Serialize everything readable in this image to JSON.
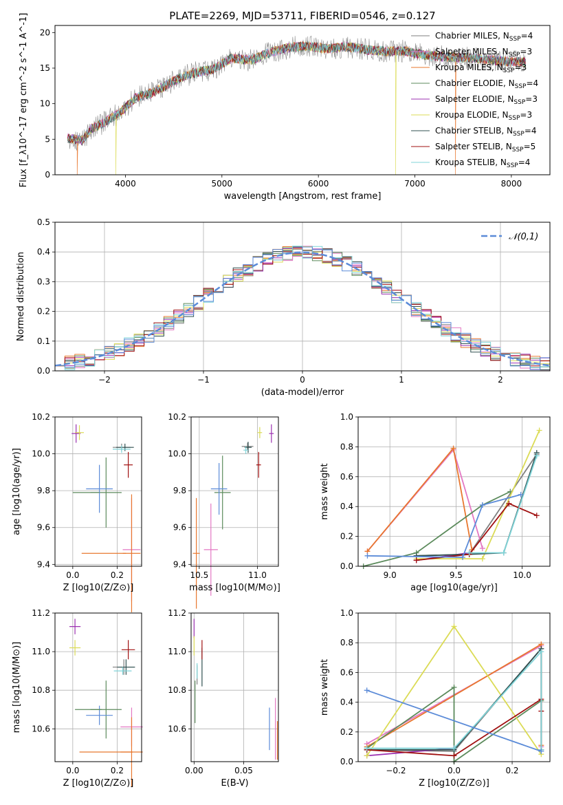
{
  "figure": {
    "title": "PLATE=2269, MJD=53711, FIBERID=0546, z=0.127"
  },
  "chart_data": [
    {
      "id": "spectrum",
      "type": "line",
      "xlabel": "wavelength [Angstrom, rest frame]",
      "ylabel": "Flux [f_λ10^-17 erg cm^-2 s^-1 A^-1]",
      "xlim": [
        3270,
        8400
      ],
      "ylim": [
        0,
        21
      ],
      "xticks": [
        4000,
        5000,
        6000,
        7000,
        8000
      ],
      "yticks": [
        0,
        5,
        10,
        15,
        20
      ],
      "grid": false,
      "legend_position": "right",
      "observed_color": "#7f7f7f",
      "anchors": [
        [
          3400,
          5.2
        ],
        [
          3550,
          4.8
        ],
        [
          3650,
          6.5
        ],
        [
          3800,
          7.5
        ],
        [
          3950,
          8.8
        ],
        [
          4100,
          10.8
        ],
        [
          4300,
          11.6
        ],
        [
          4500,
          13.2
        ],
        [
          4700,
          14.3
        ],
        [
          4900,
          14.8
        ],
        [
          5100,
          16.4
        ],
        [
          5300,
          16.1
        ],
        [
          5500,
          17.2
        ],
        [
          5700,
          17.9
        ],
        [
          5900,
          18.1
        ],
        [
          6100,
          17.7
        ],
        [
          6300,
          18.0
        ],
        [
          6500,
          17.6
        ],
        [
          6700,
          17.3
        ],
        [
          6900,
          17.4
        ],
        [
          7100,
          16.8
        ],
        [
          7300,
          16.6
        ],
        [
          7500,
          16.5
        ],
        [
          7700,
          16.3
        ],
        [
          7900,
          16.0
        ],
        [
          8150,
          15.8
        ]
      ],
      "dropouts": [
        {
          "series": "Kroupa MILES",
          "x": 3500
        },
        {
          "series": "Kroupa MILES",
          "x": 7420
        },
        {
          "series": "Kroupa ELODIE",
          "x": 3900
        },
        {
          "series": "Kroupa ELODIE",
          "x": 6800
        }
      ],
      "series": [
        {
          "name": "Chabrier MILES",
          "nssp": "4",
          "color": "#7f7f7f"
        },
        {
          "name": "Salpeter MILES",
          "nssp": "3",
          "color": "#e377c2"
        },
        {
          "name": "Kroupa MILES",
          "nssp": "3",
          "color": "#e8772e"
        },
        {
          "name": "Chabrier ELODIE",
          "nssp": "4",
          "color": "#5b8a5b"
        },
        {
          "name": "Salpeter ELODIE",
          "nssp": "3",
          "color": "#9b30b0"
        },
        {
          "name": "Kroupa ELODIE",
          "nssp": "3",
          "color": "#dbdb55"
        },
        {
          "name": "Chabrier STELIB",
          "nssp": "4",
          "color": "#2f4f4f"
        },
        {
          "name": "Salpeter STELIB",
          "nssp": "5",
          "color": "#a01010"
        },
        {
          "name": "Kroupa STELIB",
          "nssp": "4",
          "color": "#7fd4d8"
        }
      ]
    },
    {
      "id": "residuals",
      "type": "histogram",
      "xlabel": "(data-model)/error",
      "ylabel": "Normed distribution",
      "xlim": [
        -2.5,
        2.5
      ],
      "ylim": [
        0,
        0.5
      ],
      "xticks": [
        -2,
        -1,
        0,
        1,
        2
      ],
      "yticks": [
        0.0,
        0.1,
        0.2,
        0.3,
        0.4,
        0.5
      ],
      "grid": true,
      "bin_width": 0.1,
      "legend": {
        "label": "𝒩(0,1)",
        "position": "top-right",
        "color": "#5b8bd8"
      }
    },
    {
      "id": "age-metal",
      "type": "scatter",
      "xlabel": "Z [log10(Z/Z⊙)]",
      "ylabel": "age  [log10(age/yr)]",
      "xlim": [
        -0.08,
        0.31
      ],
      "ylim": [
        9.39,
        10.2
      ],
      "xticks": [
        0.0,
        0.2
      ],
      "yticks": [
        9.4,
        9.6,
        9.8,
        10.0,
        10.2
      ],
      "grid": true,
      "points": [
        {
          "series": "Chabrier MILES",
          "x": 0.22,
          "y": 10.035,
          "xerr": 0.04,
          "yerr": 0.02
        },
        {
          "series": "Salpeter MILES",
          "x": 0.265,
          "y": 9.48,
          "xerr": 0.04,
          "yerr": 0.28
        },
        {
          "series": "Kroupa MILES",
          "x": 0.265,
          "y": 9.46,
          "xerr": 0.04,
          "yerr": 0.32
        },
        {
          "series": "Chabrier ELODIE",
          "x": 0.15,
          "y": 9.79,
          "xerr": 0.07,
          "yerr": 0.19
        },
        {
          "series": "Salpeter ELODIE",
          "x": 0.015,
          "y": 10.11,
          "xerr": 0.02,
          "yerr": 0.05
        },
        {
          "series": "Kroupa ELODIE",
          "x": 0.03,
          "y": 10.115,
          "xerr": 0.02,
          "yerr": 0.04
        },
        {
          "series": "Chabrier STELIB",
          "x": 0.235,
          "y": 10.035,
          "xerr": 0.04,
          "yerr": 0.02
        },
        {
          "series": "Salpeter STELIB",
          "x": 0.25,
          "y": 9.94,
          "xerr": 0.02,
          "yerr": 0.07
        },
        {
          "series": "Kroupa STELIB",
          "x": 0.22,
          "y": 10.025,
          "xerr": 0.04,
          "yerr": 0.02
        },
        {
          "series": "extra-blue",
          "x": 0.12,
          "y": 9.81,
          "xerr": 0.06,
          "yerr": 0.13
        },
        {
          "series": "extra-orange",
          "x": 0.14,
          "y": 9.46,
          "xerr": 0.1,
          "yerr": 0.0
        },
        {
          "series": "extra-olive",
          "x": 0.06,
          "y": 9.79,
          "xerr": 0.06,
          "yerr": 0.0
        }
      ]
    },
    {
      "id": "age-mass",
      "type": "scatter",
      "xlabel": "mass [log10(M/M⊙)]",
      "ylabel": "",
      "xlim": [
        10.43,
        11.18
      ],
      "ylim": [
        9.39,
        10.2
      ],
      "xticks": [
        10.5,
        11.0
      ],
      "yticks": [
        9.4,
        9.6,
        9.8,
        10.0,
        10.2
      ],
      "grid": true,
      "points": [
        {
          "series": "Chabrier MILES",
          "x": 10.915,
          "y": 10.04,
          "xerr": 0.05,
          "yerr": 0.02
        },
        {
          "series": "Salpeter MILES",
          "x": 10.6,
          "y": 9.48,
          "xerr": 0.06,
          "yerr": 0.25
        },
        {
          "series": "Kroupa MILES",
          "x": 10.475,
          "y": 9.46,
          "xerr": 0.03,
          "yerr": 0.3
        },
        {
          "series": "Chabrier ELODIE",
          "x": 10.7,
          "y": 9.79,
          "xerr": 0.07,
          "yerr": 0.2
        },
        {
          "series": "Salpeter ELODIE",
          "x": 11.12,
          "y": 10.11,
          "xerr": 0.02,
          "yerr": 0.05
        },
        {
          "series": "Kroupa ELODIE",
          "x": 11.02,
          "y": 10.115,
          "xerr": 0.02,
          "yerr": 0.03
        },
        {
          "series": "Chabrier STELIB",
          "x": 10.92,
          "y": 10.035,
          "xerr": 0.03,
          "yerr": 0.03
        },
        {
          "series": "Salpeter STELIB",
          "x": 11.01,
          "y": 9.94,
          "xerr": 0.02,
          "yerr": 0.07
        },
        {
          "series": "Kroupa STELIB",
          "x": 10.9,
          "y": 10.02,
          "xerr": 0.02,
          "yerr": 0.02
        },
        {
          "series": "extra-blue",
          "x": 10.67,
          "y": 9.81,
          "xerr": 0.07,
          "yerr": 0.14
        }
      ]
    },
    {
      "id": "weight-age",
      "type": "line",
      "xlabel": "age  [log10(age/yr)]",
      "ylabel": "mass weight",
      "xlim": [
        8.76,
        10.21
      ],
      "ylim": [
        0,
        1.0
      ],
      "xticks": [
        9.0,
        9.5,
        10.0
      ],
      "yticks": [
        0.0,
        0.2,
        0.4,
        0.6,
        0.8,
        1.0
      ],
      "grid": true,
      "series": [
        {
          "name": "Chabrier MILES",
          "color": "#7f7f7f",
          "x": [
            9.2,
            9.6,
            10.11
          ],
          "y": [
            0.07,
            0.08,
            0.75
          ]
        },
        {
          "name": "Salpeter MILES",
          "color": "#e377c2",
          "x": [
            8.83,
            9.48,
            9.7
          ],
          "y": [
            0.1,
            0.78,
            0.12
          ]
        },
        {
          "name": "Kroupa MILES",
          "color": "#e8772e",
          "x": [
            8.83,
            9.48,
            9.62
          ],
          "y": [
            0.1,
            0.79,
            0.11
          ]
        },
        {
          "name": "Chabrier ELODIE",
          "color": "#5b8a5b",
          "x": [
            8.8,
            9.2,
            9.7,
            9.91
          ],
          "y": [
            0.0,
            0.09,
            0.41,
            0.5
          ]
        },
        {
          "name": "Salpeter ELODIE",
          "color": "#9b30b0",
          "x": [
            9.2,
            9.6
          ],
          "y": [
            0.04,
            0.09
          ]
        },
        {
          "name": "Kroupa ELODIE",
          "color": "#dbdb55",
          "x": [
            9.2,
            9.7,
            10.13
          ],
          "y": [
            0.05,
            0.05,
            0.91
          ]
        },
        {
          "name": "Chabrier STELIB",
          "color": "#2f4f4f",
          "x": [
            9.2,
            9.6,
            9.86,
            10.11
          ],
          "y": [
            0.07,
            0.08,
            0.09,
            0.76
          ]
        },
        {
          "name": "Salpeter STELIB",
          "color": "#a01010",
          "x": [
            9.2,
            9.6,
            9.9,
            10.11
          ],
          "y": [
            0.04,
            0.08,
            0.42,
            0.34
          ]
        },
        {
          "name": "Kroupa STELIB",
          "color": "#7fd4d8",
          "x": [
            9.6,
            9.86,
            10.11
          ],
          "y": [
            0.09,
            0.09,
            0.74
          ]
        },
        {
          "name": "extra-blue",
          "color": "#5b8bd8",
          "x": [
            8.83,
            9.55,
            9.7,
            9.99
          ],
          "y": [
            0.07,
            0.06,
            0.41,
            0.48
          ]
        }
      ]
    },
    {
      "id": "mass-metal",
      "type": "scatter",
      "xlabel": "Z [log10(Z/Z⊙)]",
      "ylabel": "mass [log10(M/M⊙)]",
      "xlim": [
        -0.08,
        0.31
      ],
      "ylim": [
        10.43,
        11.2
      ],
      "xticks": [
        0.0,
        0.2
      ],
      "yticks": [
        10.6,
        10.8,
        11.0,
        11.2
      ],
      "grid": true,
      "points": [
        {
          "series": "Chabrier MILES",
          "x": 0.23,
          "y": 10.92,
          "xerr": 0.05,
          "yerr": 0.04
        },
        {
          "series": "Salpeter MILES",
          "x": 0.265,
          "y": 10.61,
          "xerr": 0.05,
          "yerr": 0.1
        },
        {
          "series": "Kroupa MILES",
          "x": 0.265,
          "y": 10.48,
          "xerr": 0.05,
          "yerr": 0.18
        },
        {
          "series": "Chabrier ELODIE",
          "x": 0.15,
          "y": 10.7,
          "xerr": 0.07,
          "yerr": 0.15
        },
        {
          "series": "Salpeter ELODIE",
          "x": 0.01,
          "y": 11.13,
          "xerr": 0.025,
          "yerr": 0.04
        },
        {
          "series": "Kroupa ELODIE",
          "x": 0.01,
          "y": 11.02,
          "xerr": 0.025,
          "yerr": 0.04
        },
        {
          "series": "Chabrier STELIB",
          "x": 0.24,
          "y": 10.92,
          "xerr": 0.04,
          "yerr": 0.04
        },
        {
          "series": "Salpeter STELIB",
          "x": 0.25,
          "y": 11.01,
          "xerr": 0.03,
          "yerr": 0.05
        },
        {
          "series": "Kroupa STELIB",
          "x": 0.225,
          "y": 10.9,
          "xerr": 0.04,
          "yerr": 0.02
        },
        {
          "series": "extra-blue",
          "x": 0.12,
          "y": 10.67,
          "xerr": 0.06,
          "yerr": 0.05
        },
        {
          "series": "extra-orange",
          "x": 0.15,
          "y": 10.48,
          "xerr": 0.12,
          "yerr": 0.0
        },
        {
          "series": "extra-olive",
          "x": 0.07,
          "y": 10.7,
          "xerr": 0.06,
          "yerr": 0.0
        }
      ]
    },
    {
      "id": "mass-ebv",
      "type": "scatter",
      "xlabel": "E(B-V)",
      "ylabel": "",
      "xlim": [
        -0.003,
        0.085
      ],
      "ylim": [
        10.43,
        11.2
      ],
      "xticks": [
        0.0,
        0.05
      ],
      "yticks": [
        10.6,
        10.8,
        11.0,
        11.2
      ],
      "grid": true,
      "points": [
        {
          "series": "Chabrier MILES",
          "x": 0.003,
          "y": 10.88,
          "yerr": 0.05
        },
        {
          "series": "Salpeter MILES",
          "x": 0.082,
          "y": 10.6,
          "yerr": 0.16
        },
        {
          "series": "Kroupa MILES",
          "x": 0.084,
          "y": 10.54,
          "yerr": 0.1
        },
        {
          "series": "Chabrier ELODIE",
          "x": 0.001,
          "y": 10.74,
          "yerr": 0.11
        },
        {
          "series": "Salpeter ELODIE",
          "x": 0.0,
          "y": 11.12,
          "yerr": 0.05
        },
        {
          "series": "Kroupa ELODIE",
          "x": 0.0,
          "y": 11.03,
          "yerr": 0.05
        },
        {
          "series": "Chabrier STELIB",
          "x": 0.008,
          "y": 10.92,
          "yerr": 0.1
        },
        {
          "series": "Salpeter STELIB",
          "x": 0.008,
          "y": 11.01,
          "yerr": 0.05
        },
        {
          "series": "Kroupa STELIB",
          "x": 0.003,
          "y": 10.9,
          "yerr": 0.04
        },
        {
          "series": "extra-blue",
          "x": 0.076,
          "y": 10.6,
          "yerr": 0.11
        }
      ]
    },
    {
      "id": "weight-metal",
      "type": "line",
      "xlabel": "Z [log10(Z/Z⊙)]",
      "ylabel": "mass weight",
      "xlim": [
        -0.33,
        0.33
      ],
      "ylim": [
        0,
        1.0
      ],
      "xticks": [
        -0.2,
        0.0,
        0.2
      ],
      "yticks": [
        0.0,
        0.2,
        0.4,
        0.6,
        0.8,
        1.0
      ],
      "grid": true,
      "series": [
        {
          "name": "Chabrier MILES",
          "color": "#7f7f7f",
          "x": [
            -0.3,
            0.0,
            0.3
          ],
          "y": [
            0.08,
            0.07,
            0.76
          ]
        },
        {
          "name": "Salpeter MILES",
          "color": "#e377c2",
          "x": [
            -0.3,
            0.3,
            0.3
          ],
          "y": [
            0.12,
            0.78,
            0.1
          ]
        },
        {
          "name": "Kroupa MILES",
          "color": "#e8772e",
          "x": [
            -0.3,
            0.3,
            0.3
          ],
          "y": [
            0.1,
            0.79,
            0.11
          ]
        },
        {
          "name": "Chabrier ELODIE",
          "color": "#5b8a5b",
          "x": [
            -0.3,
            0.0,
            0.0,
            0.3
          ],
          "y": [
            0.09,
            0.5,
            0.0,
            0.41
          ]
        },
        {
          "name": "Salpeter ELODIE",
          "color": "#9b30b0",
          "x": [
            -0.3,
            0.0
          ],
          "y": [
            0.04,
            0.09
          ]
        },
        {
          "name": "Kroupa ELODIE",
          "color": "#dbdb55",
          "x": [
            -0.3,
            0.0,
            0.3
          ],
          "y": [
            0.04,
            0.91,
            0.05
          ]
        },
        {
          "name": "Chabrier STELIB",
          "color": "#2f4f4f",
          "x": [
            -0.3,
            0.0,
            0.3,
            0.3
          ],
          "y": [
            0.08,
            0.08,
            0.76,
            0.08
          ]
        },
        {
          "name": "Salpeter STELIB",
          "color": "#a01010",
          "x": [
            -0.3,
            0.0,
            0.3,
            0.3
          ],
          "y": [
            0.08,
            0.04,
            0.42,
            0.34
          ]
        },
        {
          "name": "Kroupa STELIB",
          "color": "#7fd4d8",
          "x": [
            -0.3,
            0.0,
            0.3,
            0.3
          ],
          "y": [
            0.09,
            0.09,
            0.74,
            0.08
          ]
        },
        {
          "name": "extra-blue",
          "color": "#5b8bd8",
          "x": [
            -0.3,
            0.3
          ],
          "y": [
            0.48,
            0.07
          ]
        }
      ]
    }
  ],
  "colors": {
    "Chabrier MILES": "#7f7f7f",
    "Salpeter MILES": "#e377c2",
    "Kroupa MILES": "#e8772e",
    "Chabrier ELODIE": "#5b8a5b",
    "Salpeter ELODIE": "#9b30b0",
    "Kroupa ELODIE": "#dbdb55",
    "Chabrier STELIB": "#2f4f4f",
    "Salpeter STELIB": "#a01010",
    "Kroupa STELIB": "#7fd4d8",
    "extra-blue": "#5b8bd8",
    "extra-orange": "#e8772e",
    "extra-olive": "#5b8a5b",
    "gaussian": "#5b8bd8",
    "grid": "#b0b0b0"
  }
}
